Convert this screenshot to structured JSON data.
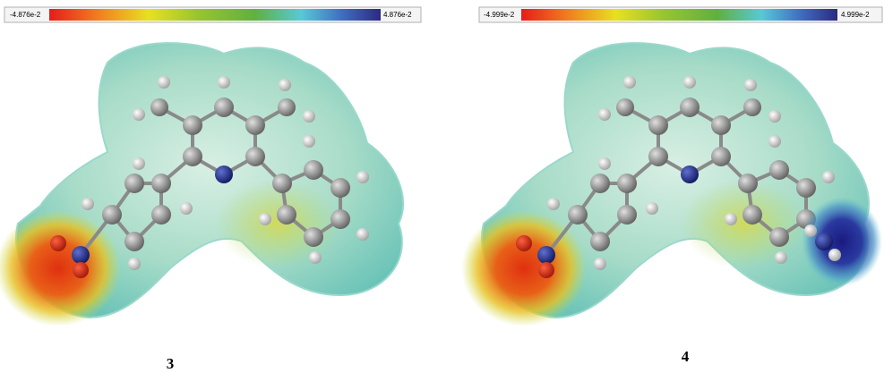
{
  "panels": [
    {
      "scale": {
        "min_label": "-4.876e-2",
        "max_label": "4.876e-2"
      },
      "label": "3"
    },
    {
      "scale": {
        "min_label": "-4.999e-2",
        "max_label": "4.999e-2"
      },
      "label": "4"
    }
  ]
}
